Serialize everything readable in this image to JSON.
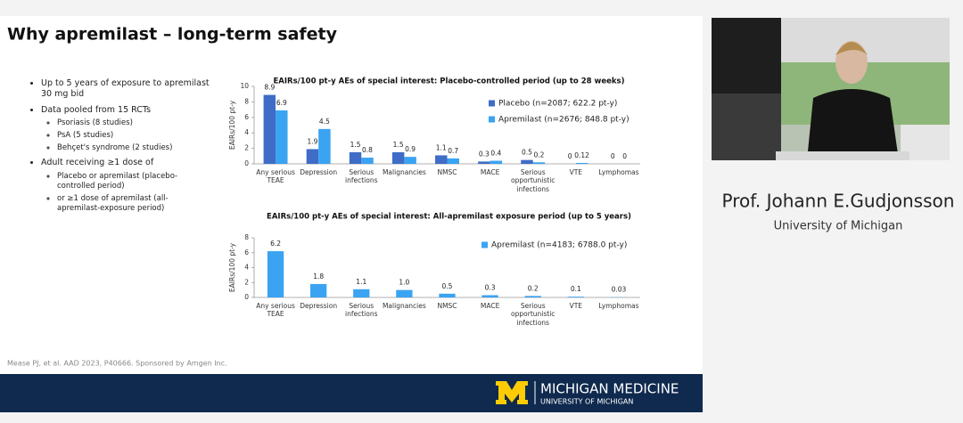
{
  "slide": {
    "title": "Why apremilast – long-term safety",
    "bullets": [
      {
        "text": "Up to 5 years of exposure to apremilast 30 mg bid"
      },
      {
        "text": "Data pooled from 15 RCTs",
        "sub": [
          "Psoriasis (8 studies)",
          "PsA (5 studies)",
          "Behçet's syndrome (2 studies)"
        ]
      },
      {
        "text": "Adult receiving ≥1 dose of",
        "sub": [
          "Placebo or apremilast (placebo-controlled period)",
          "or ≥1 dose of apremilast (all-apremilast-exposure period)"
        ]
      }
    ],
    "footnote": "Mease PJ, et al. AAD 2023, P40666. Sponsored by Amgen Inc.",
    "logo": {
      "name": "MICHIGAN MEDICINE",
      "sub": "UNIVERSITY OF MICHIGAN"
    }
  },
  "speaker": {
    "name": "Prof. Johann E.Gudjonsson",
    "affiliation": "University of Michigan"
  },
  "chart_data": [
    {
      "type": "bar",
      "title": "EAIRs/100 pt-y AEs of special interest: Placebo-controlled period (up to 28 weeks)",
      "y_label": "EAIRs/100 pt-y",
      "categories": [
        "Any serious TEAE",
        "Depression",
        "Serious infections",
        "Malignancies",
        "NMSC",
        "MACE",
        "Serious opportunistic infections",
        "VTE",
        "Lymphomas"
      ],
      "series": [
        {
          "name": "Placebo (n=2087; 622.2 pt-y)",
          "color": "#3f6cc6",
          "values": [
            8.9,
            1.9,
            1.5,
            1.5,
            1.1,
            0.3,
            0.5,
            0,
            0
          ]
        },
        {
          "name": "Apremilast (n=2676; 848.8 pt-y)",
          "color": "#3aa3f2",
          "values": [
            6.9,
            4.5,
            0.8,
            0.9,
            0.7,
            0.4,
            0.2,
            0.12,
            0
          ]
        }
      ],
      "ylim": [
        0,
        10
      ],
      "yticks": [
        0,
        2,
        4,
        6,
        8,
        10
      ],
      "grid": false,
      "legend": "upper right"
    },
    {
      "type": "bar",
      "title": "EAIRs/100 pt-y AEs of special interest: All-apremilast exposure period (up to 5 years)",
      "y_label": "EAIRs/100 pt-y",
      "categories": [
        "Any serious TEAE",
        "Depression",
        "Serious infections",
        "Malignancies",
        "NMSC",
        "MACE",
        "Serious opportunistic infections",
        "VTE",
        "Lymphomas"
      ],
      "series": [
        {
          "name": "Apremilast (n=4183; 6788.0 pt-y)",
          "color": "#3aa3f2",
          "values": [
            6.2,
            1.8,
            1.1,
            1.0,
            0.5,
            0.3,
            0.2,
            0.1,
            0.03
          ],
          "value_labels": [
            "6.2",
            "1.8",
            "1.1",
            "1.0",
            "0.5",
            "0.3",
            "0.2",
            "0.1",
            "0.03"
          ]
        }
      ],
      "ylim": [
        0,
        8
      ],
      "yticks": [
        0,
        2,
        4,
        6,
        8
      ],
      "grid": false,
      "legend": "upper right"
    }
  ]
}
